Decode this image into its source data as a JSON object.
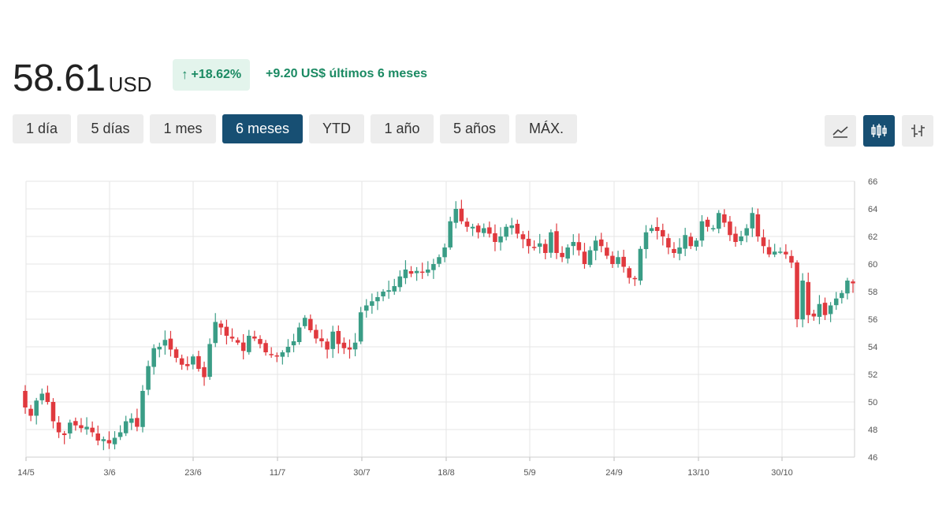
{
  "quote": {
    "price": "58.61",
    "currency": "USD",
    "change_pct": "+18.62%",
    "change_abs": "+9.20 US$ últimos 6 meses",
    "up_color": "#1b8a63"
  },
  "ranges": [
    {
      "label": "1 día",
      "active": false
    },
    {
      "label": "5 días",
      "active": false
    },
    {
      "label": "1 mes",
      "active": false
    },
    {
      "label": "6 meses",
      "active": true
    },
    {
      "label": "YTD",
      "active": false
    },
    {
      "label": "1 año",
      "active": false
    },
    {
      "label": "5 años",
      "active": false
    },
    {
      "label": "MÁX.",
      "active": false
    }
  ],
  "chart_tools": [
    {
      "icon": "line-chart-icon",
      "active": false
    },
    {
      "icon": "candlestick-chart-icon",
      "active": true
    },
    {
      "icon": "ohlc-bars-icon",
      "active": false
    }
  ],
  "colors": {
    "up": "#3a9d86",
    "down": "#e0393e",
    "accent": "#174f73"
  },
  "chart_data": {
    "type": "candlestick",
    "x_tick_labels": [
      "14/5",
      "3/6",
      "23/6",
      "11/7",
      "30/7",
      "18/8",
      "5/9",
      "24/9",
      "13/10",
      "30/10"
    ],
    "y_ticks": [
      46,
      48,
      50,
      52,
      54,
      56,
      58,
      60,
      62,
      64,
      66
    ],
    "ylim": [
      46,
      66
    ],
    "grid": true,
    "y_axis_side": "right",
    "close_series": [
      49.6,
      49.0,
      50.1,
      50.6,
      50.0,
      48.6,
      47.8,
      47.6,
      48.5,
      48.3,
      48.1,
      48.2,
      47.8,
      47.2,
      47.3,
      47.0,
      47.4,
      47.8,
      48.6,
      48.8,
      48.2,
      50.8,
      52.6,
      53.9,
      54.0,
      54.5,
      53.8,
      53.2,
      52.7,
      52.6,
      53.3,
      52.4,
      51.8,
      54.2,
      55.8,
      55.4,
      54.8,
      54.6,
      54.3,
      53.7,
      54.8,
      54.6,
      54.2,
      53.6,
      53.4,
      53.3,
      53.6,
      54.0,
      54.4,
      55.4,
      56.1,
      55.2,
      54.6,
      54.4,
      53.8,
      55.1,
      54.2,
      53.9,
      53.8,
      54.3,
      56.5,
      57.0,
      57.3,
      57.6,
      58.0,
      58.1,
      58.4,
      59.1,
      59.6,
      59.3,
      59.5,
      59.4,
      59.6,
      60.0,
      60.5,
      61.2,
      63.1,
      64.0,
      63.1,
      62.7,
      62.7,
      62.3,
      62.6,
      62.2,
      61.6,
      62.0,
      62.7,
      62.8,
      62.2,
      61.8,
      61.3,
      61.2,
      61.5,
      60.8,
      62.3,
      60.8,
      60.5,
      61.2,
      61.6,
      61.0,
      60.0,
      61.0,
      61.7,
      61.3,
      60.6,
      60.0,
      60.5,
      59.8,
      59.0,
      58.9,
      61.1,
      62.3,
      62.6,
      62.4,
      62.0,
      61.2,
      60.8,
      61.2,
      62.1,
      61.3,
      61.7,
      63.1,
      62.7,
      62.6,
      63.7,
      63.0,
      62.1,
      61.6,
      62.0,
      62.6,
      63.7,
      62.0,
      61.3,
      60.7,
      60.9,
      60.9,
      60.7,
      60.1,
      56.0,
      58.8,
      56.3,
      56.2,
      57.1,
      56.3,
      57.0,
      57.5,
      57.9,
      58.8,
      58.6
    ]
  }
}
